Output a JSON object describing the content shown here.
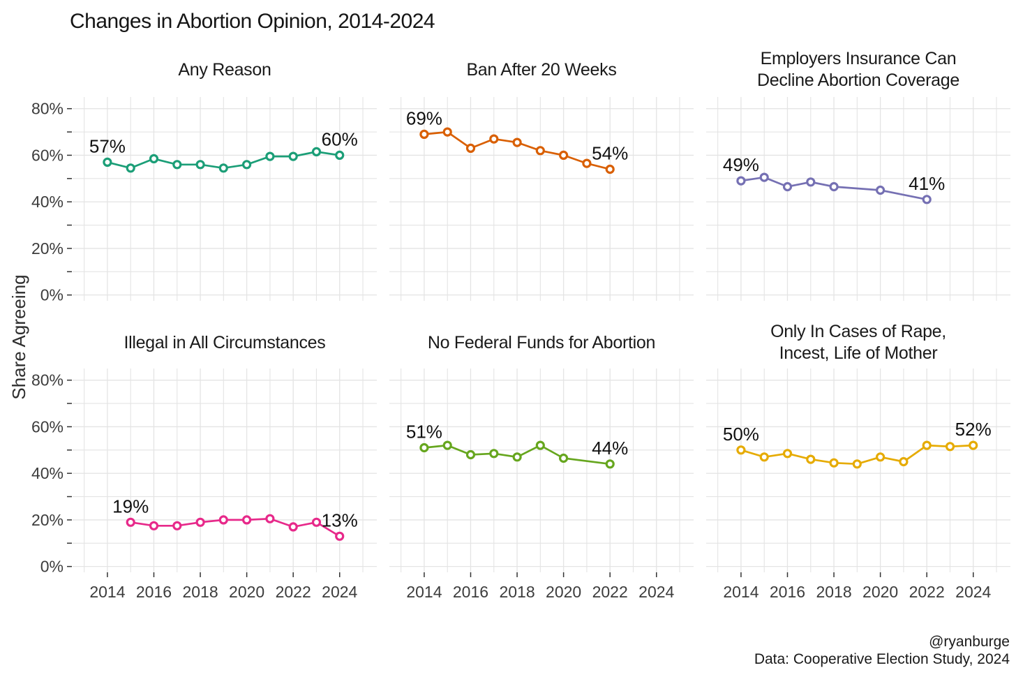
{
  "title": "Changes in Abortion Opinion, 2014-2024",
  "y_axis": {
    "title": "Share Agreeing",
    "tick_labels": [
      "0%",
      "20%",
      "40%",
      "60%",
      "80%"
    ]
  },
  "x_axis": {
    "tick_labels": [
      "2014",
      "2016",
      "2018",
      "2020",
      "2022",
      "2024"
    ]
  },
  "attribution": {
    "handle": "@ryanburge",
    "source": "Data: Cooperative Election Study, 2024"
  },
  "chart_data": {
    "type": "line",
    "title": "Changes in Abortion Opinion, 2014-2024",
    "ylabel": "Share Agreeing",
    "grid": true,
    "x_range": [
      2012.5,
      2025.6
    ],
    "y_range": [
      -2.5,
      85
    ],
    "x_ticks": [
      2014,
      2016,
      2018,
      2020,
      2022,
      2024
    ],
    "y_ticks_labeled": [
      0,
      20,
      40,
      60,
      80
    ],
    "y_ticks_all": [
      0,
      10,
      20,
      30,
      40,
      50,
      60,
      70,
      80
    ],
    "facets": [
      {
        "title": [
          "Any Reason"
        ],
        "color": "#1B9E77",
        "years": [
          2014,
          2015,
          2016,
          2017,
          2018,
          2019,
          2020,
          2021,
          2022,
          2023,
          2024
        ],
        "values": [
          57,
          54.5,
          58.5,
          56,
          56,
          54.5,
          56,
          59.5,
          59.5,
          61.5,
          60
        ],
        "first_label": "57%",
        "last_label": "60%"
      },
      {
        "title": [
          "Ban After 20 Weeks"
        ],
        "color": "#D95F02",
        "years": [
          2014,
          2015,
          2016,
          2017,
          2018,
          2019,
          2020,
          2021,
          2022
        ],
        "values": [
          69,
          70,
          63,
          67,
          65.5,
          62,
          60,
          56.5,
          54
        ],
        "first_label": "69%",
        "last_label": "54%"
      },
      {
        "title": [
          "Employers Insurance Can",
          "Decline Abortion Coverage"
        ],
        "color": "#7570B3",
        "years": [
          2014,
          2015,
          2016,
          2017,
          2018,
          2020,
          2022
        ],
        "values": [
          49,
          50.5,
          46.5,
          48.5,
          46.5,
          45,
          41
        ],
        "first_label": "49%",
        "last_label": "41%"
      },
      {
        "title": [
          "Illegal in All Circumstances"
        ],
        "color": "#E7298A",
        "years": [
          2015,
          2016,
          2017,
          2018,
          2019,
          2020,
          2021,
          2022,
          2023,
          2024
        ],
        "values": [
          19,
          17.5,
          17.5,
          19,
          20,
          20,
          20.5,
          17,
          19,
          13
        ],
        "first_label": "19%",
        "last_label": "13%"
      },
      {
        "title": [
          "No Federal Funds for Abortion"
        ],
        "color": "#66A61E",
        "years": [
          2014,
          2015,
          2016,
          2017,
          2018,
          2019,
          2020,
          2022
        ],
        "values": [
          51,
          52,
          48,
          48.5,
          47,
          52,
          46.5,
          44
        ],
        "first_label": "51%",
        "last_label": "44%"
      },
      {
        "title": [
          "Only In Cases of Rape,",
          "Incest, Life of Mother"
        ],
        "color": "#E6AB02",
        "years": [
          2014,
          2015,
          2016,
          2017,
          2018,
          2019,
          2020,
          2021,
          2022,
          2023,
          2024
        ],
        "values": [
          50,
          47,
          48.5,
          46,
          44.5,
          44,
          47,
          45,
          52,
          51.5,
          52
        ],
        "first_label": "50%",
        "last_label": "52%"
      }
    ]
  }
}
